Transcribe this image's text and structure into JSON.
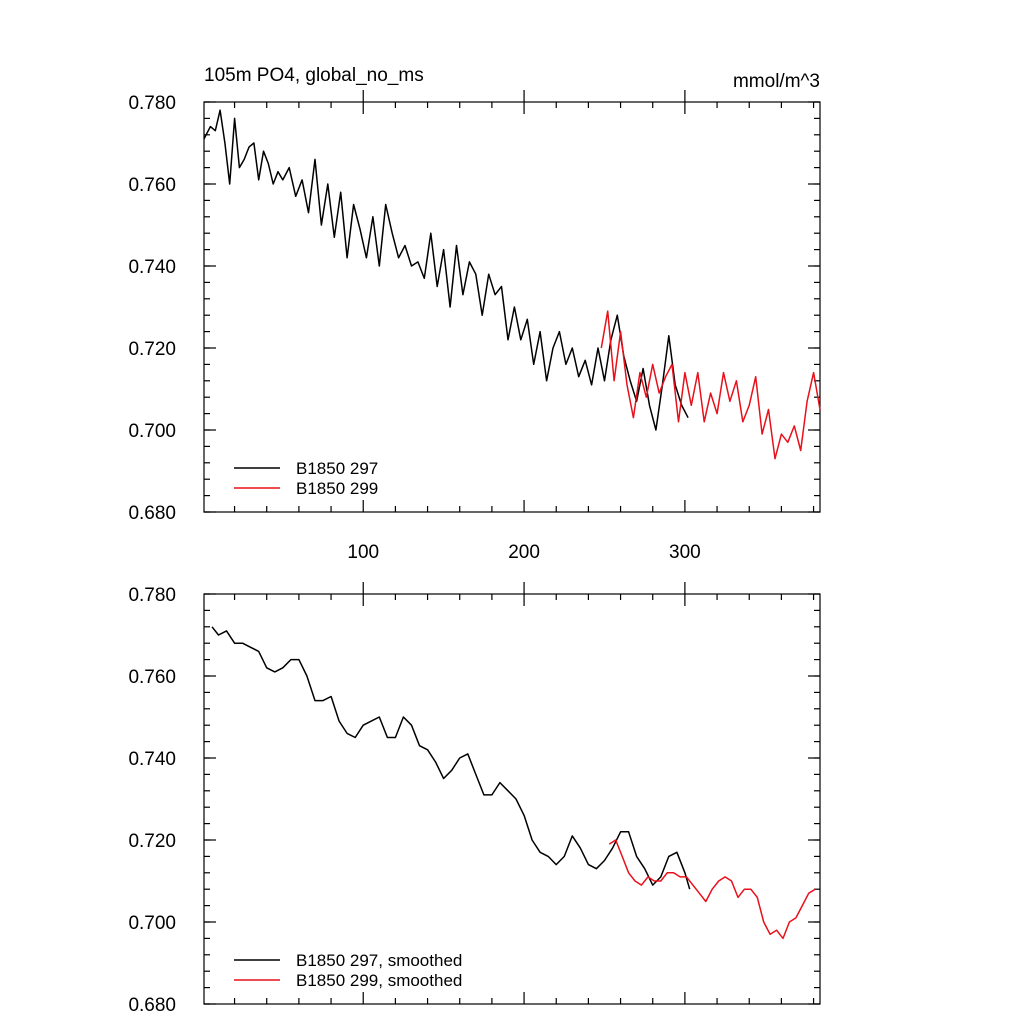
{
  "chart_data": [
    {
      "type": "line",
      "title": "105m PO4, global_no_ms",
      "units": "mmol/m^3",
      "xlim": [
        1,
        384
      ],
      "ylim": [
        0.68,
        0.78
      ],
      "x_ticks": [
        100,
        200,
        300
      ],
      "x_tick_labels": [
        "100",
        "200",
        "300"
      ],
      "y_ticks": [
        0.68,
        0.7,
        0.72,
        0.74,
        0.76,
        0.78
      ],
      "y_tick_labels": [
        "0.680",
        "0.700",
        "0.720",
        "0.740",
        "0.760",
        "0.780"
      ],
      "grid": false,
      "legend": "bottom-left",
      "series": [
        {
          "name": "B1850 297",
          "color": "#000000",
          "x": [
            1,
            5,
            8,
            11,
            14,
            17,
            20,
            23,
            26,
            29,
            32,
            35,
            38,
            41,
            44,
            47,
            50,
            54,
            58,
            62,
            66,
            70,
            74,
            78,
            82,
            86,
            90,
            94,
            98,
            102,
            106,
            110,
            114,
            118,
            122,
            126,
            130,
            134,
            138,
            142,
            146,
            150,
            154,
            158,
            162,
            166,
            170,
            174,
            178,
            182,
            186,
            190,
            194,
            198,
            202,
            206,
            210,
            214,
            218,
            222,
            226,
            230,
            234,
            238,
            242,
            246,
            250,
            254,
            258,
            262,
            266,
            270,
            274,
            278,
            282,
            286,
            290,
            294,
            298,
            302
          ],
          "values": [
            0.771,
            0.774,
            0.773,
            0.778,
            0.77,
            0.76,
            0.776,
            0.764,
            0.766,
            0.769,
            0.77,
            0.761,
            0.768,
            0.765,
            0.76,
            0.763,
            0.761,
            0.764,
            0.757,
            0.761,
            0.753,
            0.766,
            0.75,
            0.76,
            0.747,
            0.758,
            0.742,
            0.755,
            0.749,
            0.742,
            0.752,
            0.74,
            0.755,
            0.748,
            0.742,
            0.745,
            0.74,
            0.741,
            0.737,
            0.748,
            0.735,
            0.744,
            0.73,
            0.745,
            0.733,
            0.741,
            0.738,
            0.728,
            0.738,
            0.733,
            0.735,
            0.722,
            0.73,
            0.722,
            0.727,
            0.716,
            0.724,
            0.712,
            0.72,
            0.724,
            0.716,
            0.72,
            0.713,
            0.717,
            0.711,
            0.72,
            0.712,
            0.722,
            0.728,
            0.718,
            0.712,
            0.707,
            0.715,
            0.706,
            0.7,
            0.711,
            0.723,
            0.711,
            0.706,
            0.703
          ]
        },
        {
          "name": "B1850 299",
          "color": "#e8101a",
          "x": [
            248,
            252,
            256,
            260,
            264,
            268,
            272,
            276,
            280,
            284,
            288,
            292,
            296,
            300,
            304,
            308,
            312,
            316,
            320,
            324,
            328,
            332,
            336,
            340,
            344,
            348,
            352,
            356,
            360,
            364,
            368,
            372,
            376,
            380,
            384
          ],
          "values": [
            0.72,
            0.729,
            0.712,
            0.724,
            0.711,
            0.703,
            0.714,
            0.708,
            0.716,
            0.709,
            0.713,
            0.716,
            0.702,
            0.714,
            0.706,
            0.714,
            0.702,
            0.709,
            0.704,
            0.714,
            0.707,
            0.712,
            0.702,
            0.706,
            0.713,
            0.699,
            0.705,
            0.693,
            0.699,
            0.697,
            0.701,
            0.695,
            0.707,
            0.714,
            0.705
          ]
        }
      ]
    },
    {
      "type": "line",
      "title": "",
      "xlim": [
        1,
        384
      ],
      "ylim": [
        0.68,
        0.78
      ],
      "x_ticks": [
        100,
        200,
        300
      ],
      "y_ticks": [
        0.68,
        0.7,
        0.72,
        0.74,
        0.76,
        0.78
      ],
      "y_tick_labels": [
        "0.680",
        "0.700",
        "0.720",
        "0.740",
        "0.760",
        "0.780"
      ],
      "grid": false,
      "legend": "bottom-left",
      "series": [
        {
          "name": "B1850 297, smoothed",
          "color": "#000000",
          "x": [
            6,
            10,
            15,
            20,
            25,
            30,
            35,
            40,
            45,
            50,
            55,
            60,
            65,
            70,
            75,
            80,
            85,
            90,
            95,
            100,
            105,
            110,
            115,
            120,
            125,
            130,
            135,
            140,
            145,
            150,
            155,
            160,
            165,
            170,
            175,
            180,
            185,
            190,
            195,
            200,
            205,
            210,
            215,
            220,
            225,
            230,
            235,
            240,
            245,
            250,
            255,
            260,
            265,
            270,
            275,
            280,
            285,
            290,
            295,
            300,
            303
          ],
          "values": [
            0.772,
            0.77,
            0.771,
            0.768,
            0.768,
            0.767,
            0.766,
            0.762,
            0.761,
            0.762,
            0.764,
            0.764,
            0.76,
            0.754,
            0.754,
            0.755,
            0.749,
            0.746,
            0.745,
            0.748,
            0.749,
            0.75,
            0.745,
            0.745,
            0.75,
            0.748,
            0.743,
            0.742,
            0.739,
            0.735,
            0.737,
            0.74,
            0.741,
            0.736,
            0.731,
            0.731,
            0.734,
            0.732,
            0.73,
            0.726,
            0.72,
            0.717,
            0.716,
            0.714,
            0.716,
            0.721,
            0.718,
            0.714,
            0.713,
            0.715,
            0.718,
            0.722,
            0.722,
            0.716,
            0.713,
            0.709,
            0.711,
            0.716,
            0.717,
            0.712,
            0.708
          ]
        },
        {
          "name": "B1850 299, smoothed",
          "color": "#e8101a",
          "x": [
            253,
            257,
            261,
            265,
            269,
            273,
            277,
            281,
            285,
            289,
            293,
            297,
            301,
            305,
            309,
            313,
            317,
            321,
            325,
            329,
            333,
            337,
            341,
            345,
            349,
            353,
            357,
            361,
            365,
            369,
            373,
            377,
            381
          ],
          "values": [
            0.719,
            0.72,
            0.716,
            0.712,
            0.71,
            0.709,
            0.711,
            0.71,
            0.71,
            0.712,
            0.712,
            0.711,
            0.711,
            0.709,
            0.707,
            0.705,
            0.708,
            0.71,
            0.711,
            0.71,
            0.706,
            0.708,
            0.708,
            0.706,
            0.7,
            0.697,
            0.698,
            0.696,
            0.7,
            0.701,
            0.704,
            0.707,
            0.708
          ]
        }
      ]
    }
  ]
}
